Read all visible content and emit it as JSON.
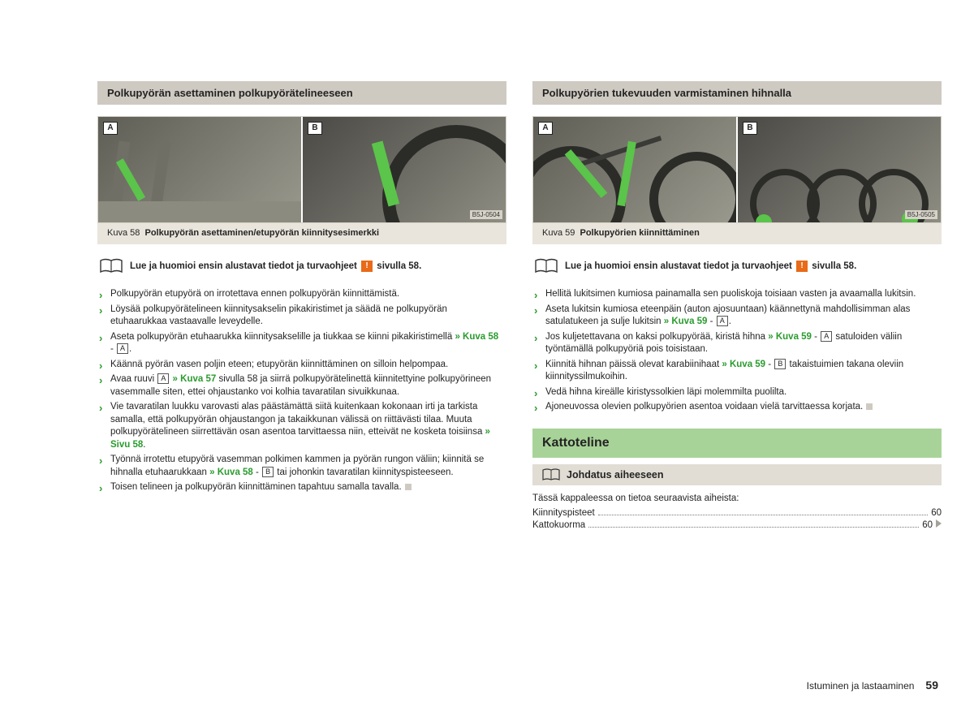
{
  "left": {
    "header": "Polkupyörän asettaminen polkupyörätelineeseen",
    "fig_code": "B5J-0504",
    "fig_labels": [
      "A",
      "B"
    ],
    "caption_prefix": "Kuva 58",
    "caption": "Polkupyörän asettaminen/etupyörän kiinnitysesimerkki",
    "notice_pre": "Lue ja huomioi ensin alustavat tiedot ja turvaohjeet",
    "notice_post": "sivulla 58.",
    "bullets": [
      {
        "t": "Polkupyörän etupyörä on irrotettava ennen polkupyörän kiinnittämistä."
      },
      {
        "t": "Löysää polkupyörätelineen kiinnitysakselin pikakiristimet ja säädä ne polkupyörän etuhaarukkaa vastaavalle leveydelle."
      },
      {
        "pre": "Aseta polkupyörän etuhaarukka kiinnitysakselille ja tiukkaa se kiinni pikakiristimellä ",
        "ref": "» Kuva 58",
        "post": " - ",
        "cap": "A",
        "tail": "."
      },
      {
        "t": "Käännä pyörän vasen poljin eteen; etupyörän kiinnittäminen on silloin helpompaa."
      },
      {
        "pre": "Avaa ruuvi ",
        "cap0": "A",
        "mid": " ",
        "ref": "» Kuva 57",
        "post": " sivulla 58 ja siirrä polkupyörätelinettä kiinnitettyine polkupyörineen vasemmalle siten, ettei ohjaustanko voi kolhia tavaratilan sivuikkunaa."
      },
      {
        "pre": "Vie tavaratilan luukku varovasti alas päästämättä siitä kuitenkaan kokonaan irti ja tarkista samalla, että polkupyörän ohjaustangon ja takaikkunan välissä on riittävästi tilaa. Muuta polkupyörätelineen siirrettävän osan asentoa tarvittaessa niin, etteivät ne kosketa toisiinsa ",
        "ref": "» Sivu 58",
        "post": "."
      },
      {
        "pre": "Työnnä irrotettu etupyörä vasemman polkimen kammen ja pyörän rungon väliin; kiinnitä se hihnalla etuhaarukkaan ",
        "ref": "» Kuva 58",
        "post": " - ",
        "cap": "B",
        "tail": " tai johonkin tavaratilan kiinnityspisteeseen."
      },
      {
        "t": "Toisen telineen ja polkupyörän kiinnittäminen tapahtuu samalla tavalla.",
        "end": true
      }
    ]
  },
  "right": {
    "header": "Polkupyörien tukevuuden varmistaminen hihnalla",
    "fig_code": "B5J-0505",
    "fig_labels": [
      "A",
      "B"
    ],
    "caption_prefix": "Kuva 59",
    "caption": "Polkupyörien kiinnittäminen",
    "notice_pre": "Lue ja huomioi ensin alustavat tiedot ja turvaohjeet",
    "notice_post": "sivulla 58.",
    "bullets": [
      {
        "t": "Hellitä lukitsimen kumiosa painamalla sen puoliskoja toisiaan vasten ja avaamalla lukitsin."
      },
      {
        "pre": "Aseta lukitsin kumiosa eteenpäin (auton ajosuuntaan) käännettynä mahdollisimman alas satulatukeen ja sulje lukitsin ",
        "ref": "» Kuva 59",
        "post": " - ",
        "cap": "A",
        "tail": "."
      },
      {
        "pre": "Jos kuljetettavana on kaksi polkupyörää, kiristä hihna ",
        "ref": "» Kuva 59",
        "post": " - ",
        "cap": "A",
        "tail": " satuloiden väliin työntämällä polkupyöriä pois toisistaan."
      },
      {
        "pre": "Kiinnitä hihnan päissä olevat karabiinihaat ",
        "ref": "» Kuva 59",
        "post": " - ",
        "cap": "B",
        "tail": " takaistuimien takana oleviin kiinnityssilmukoihin."
      },
      {
        "t": "Vedä hihna kireälle kiristyssolkien läpi molemmilta puolilta."
      },
      {
        "t": "Ajoneuvossa olevien polkupyörien asentoa voidaan vielä tarvittaessa korjata.",
        "end": true
      }
    ],
    "section_title": "Kattoteline",
    "sub_title": "Johdatus aiheeseen",
    "intro": "Tässä kappaleessa on tietoa seuraavista aiheista:",
    "toc": [
      {
        "label": "Kiinnityspisteet",
        "page": "60"
      },
      {
        "label": "Kattokuorma",
        "page": "60"
      }
    ]
  },
  "footer": {
    "section": "Istuminen ja lastaaminen",
    "page": "59"
  },
  "colors": {
    "accent_green": "#2a9b2e",
    "strap_green": "#5bc44a",
    "gray_header": "#cfcac1",
    "beige": "#e9e5dc",
    "section_green": "#a8d398",
    "orange": "#e96a18"
  }
}
